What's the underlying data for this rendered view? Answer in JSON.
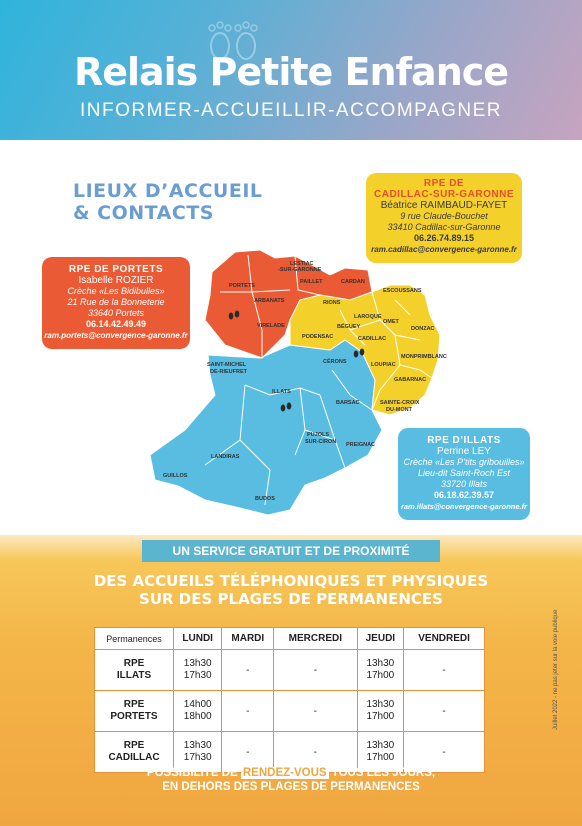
{
  "header": {
    "title": "Relais Petite Enfance",
    "subtitle": "INFORMER-ACCUEILLIR-ACCOMPAGNER"
  },
  "lieux": {
    "line1": "LIEUX D’ACCUEIL",
    "line2": "& CONTACTS"
  },
  "contacts": {
    "portets": {
      "title": "RPE DE PORTETS",
      "name": "Isabelle ROZIER",
      "line1": "Crèche «Les Bidibulles»",
      "line2": "21 Rue de la Bonneterie",
      "line3": "33640 Portets",
      "phone": "06.14.42.49.49",
      "email": "ram.portets@convergence-garonne.fr"
    },
    "cadillac": {
      "title1": "RPE DE",
      "title2": "CADILLAC-SUR-GARONNE",
      "name": "Béatrice RAIMBAUD-FAYET",
      "line1": "9 rue Claude-Bouchet",
      "line2": "33410 Cadillac-sur-Garonne",
      "phone": "06.26.74.89.15",
      "email": "ram.cadillac@convergence-garonne.fr"
    },
    "illats": {
      "title": "RPE D’ILLATS",
      "name": "Perrine LEY",
      "line1": "Crèche «Les P’tits gribouilles»",
      "line2": "Lieu-dit Saint-Roch Est",
      "line3": "33720 Illats",
      "phone": "06.18.62.39.57",
      "email": "ram.illats@convergence-garonne.fr"
    }
  },
  "map_labels": {
    "portets": "PORTETS",
    "arbanats": "ARBANATS",
    "virelade": "VIRELADE",
    "lestiac": "LESTIAC",
    "sur_garonne": "-SUR-GARONNE",
    "paillet": "PAILLET",
    "cardan": "CARDAN",
    "rions": "RIONS",
    "escoussans": "ESCOUSSANS",
    "laroque": "LAROQUE",
    "omet": "OMET",
    "donzac": "DONZAC",
    "beguey": "BÉGUEY",
    "podensac": "PODENSAC",
    "cadillac": "CADILLAC",
    "monprimblanc": "MONPRIMBLANC",
    "loupiac": "LOUPIAC",
    "gabarnac": "GABARNAC",
    "sainte_croix": "SAINTE-CROIX",
    "du_mont": "DU-MONT",
    "cerons": "CÉRONS",
    "barsac": "BARSAC",
    "saint_michel": "SAINT-MICHEL",
    "de_rieufret": "DE-RIEUFRET",
    "illats": "ILLATS",
    "pujols": "PUJOLS",
    "sur_ciron": "SUR-CIRON",
    "preignac": "PREIGNAC",
    "landiras": "LANDIRAS",
    "guillos": "GUILLOS",
    "budos": "BUDOS"
  },
  "banner": "UN SERVICE GRATUIT ET DE PROXIMITÉ",
  "headline": {
    "line1": "DES ACCUEILS TÉLÉPHONIQUES ET PHYSIQUES",
    "line2": "SUR DES PLAGES DE PERMANENCES"
  },
  "table": {
    "headers": [
      "Permanences",
      "LUNDI",
      "MARDI",
      "MERCREDI",
      "JEUDI",
      "VENDREDI"
    ],
    "rows": [
      {
        "name1": "RPE",
        "name2": "ILLATS",
        "lundi1": "13h30",
        "lundi2": "17h30",
        "mardi": "-",
        "mercredi": "-",
        "jeudi1": "13h30",
        "jeudi2": "17h00",
        "vendredi": "-"
      },
      {
        "name1": "RPE",
        "name2": "PORTETS",
        "lundi1": "14h00",
        "lundi2": "18h00",
        "mardi": "-",
        "mercredi": "-",
        "jeudi1": "13h30",
        "jeudi2": "17h00",
        "vendredi": "-"
      },
      {
        "name1": "RPE",
        "name2": "CADILLAC",
        "lundi1": "13h30",
        "lundi2": "17h30",
        "mardi": "-",
        "mercredi": "-",
        "jeudi1": "13h30",
        "jeudi2": "17h00",
        "vendredi": "-"
      }
    ]
  },
  "footer": {
    "pre": "POSSIBILITÉ DE ",
    "highlight": "RENDEZ-VOUS",
    "post": " TOUS LES JOURS,",
    "line2": "EN DEHORS DES PLAGES DE PERMANENCES"
  },
  "side_note": "Juillet 2022 - ne pas jeter sur la voie publique",
  "colors": {
    "orange": "#ea5a34",
    "yellow": "#f4d12a",
    "blue": "#58bde0",
    "title_blue": "#6a9ed1"
  }
}
